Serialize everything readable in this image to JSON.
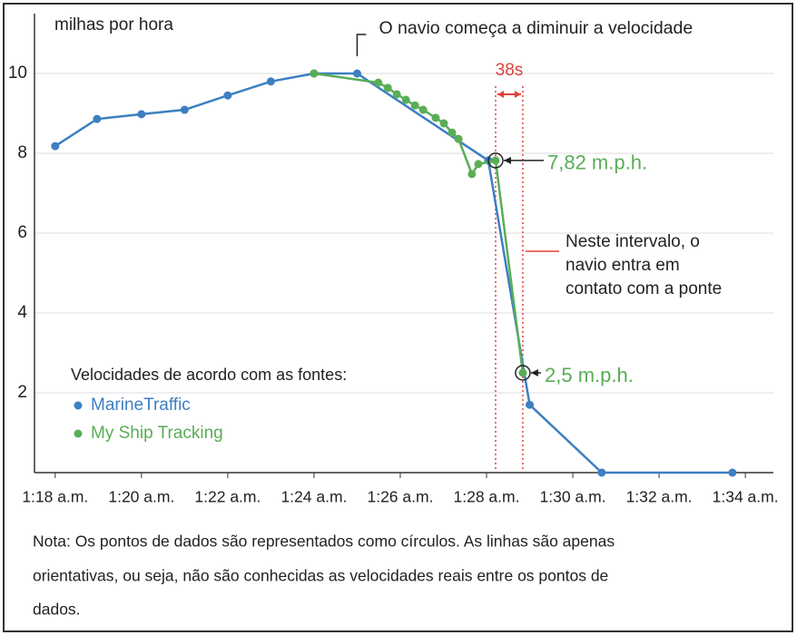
{
  "chart_data": {
    "type": "line",
    "y_axis_label": "milhas por hora",
    "xlim": [
      77.52,
      94.65
    ],
    "ylim": [
      0,
      11.5
    ],
    "xticks": [
      {
        "value": 78,
        "label": "1:18 a.m."
      },
      {
        "value": 80,
        "label": "1:20 a.m."
      },
      {
        "value": 82,
        "label": "1:22 a.m."
      },
      {
        "value": 84,
        "label": "1:24 a.m."
      },
      {
        "value": 86,
        "label": "1:26 a.m."
      },
      {
        "value": 88,
        "label": "1:28 a.m."
      },
      {
        "value": 90,
        "label": "1:30 a.m."
      },
      {
        "value": 92,
        "label": "1:32 a.m."
      },
      {
        "value": 94,
        "label": "1:34 a.m."
      }
    ],
    "yticks": [
      2,
      4,
      6,
      8,
      10
    ],
    "grid": true,
    "legend_title": "Velocidades de acordo com as fontes:",
    "series": [
      {
        "name": "MarineTraffic",
        "color": "#3d7fc1",
        "x": [
          78,
          78.97,
          80,
          81,
          82,
          83,
          84,
          85,
          88.04,
          89,
          90.67,
          93.7
        ],
        "values": [
          8.18,
          8.86,
          8.98,
          9.09,
          9.45,
          9.8,
          10,
          10,
          7.82,
          1.7,
          0,
          0
        ]
      },
      {
        "name": "My Ship Tracking",
        "color": "#5aad57",
        "x": [
          84,
          85.49,
          85.71,
          85.92,
          86.13,
          86.34,
          86.53,
          86.82,
          87.01,
          87.2,
          87.35,
          87.66,
          87.81,
          88.21,
          88.84
        ],
        "values": [
          10,
          9.77,
          9.64,
          9.48,
          9.34,
          9.2,
          9.09,
          8.89,
          8.75,
          8.52,
          8.36,
          7.48,
          7.73,
          7.82,
          2.5
        ],
        "value_labels": [
          null,
          null,
          null,
          null,
          null,
          null,
          null,
          null,
          null,
          null,
          null,
          null,
          null,
          "7,82 m.p.h.",
          "2,5 m.p.h."
        ]
      }
    ],
    "annotations": {
      "slowdown": "O navio começa a diminuir a velocidade",
      "interval": "38s",
      "contact": [
        "Neste intervalo, o",
        "navio entra em",
        "contato com a ponte"
      ]
    }
  },
  "note": [
    "Nota: Os pontos de dados são representados como círculos. As linhas são apenas",
    "orientativas, ou seja, não são conhecidas as velocidades reais entre os pontos de",
    "dados."
  ]
}
